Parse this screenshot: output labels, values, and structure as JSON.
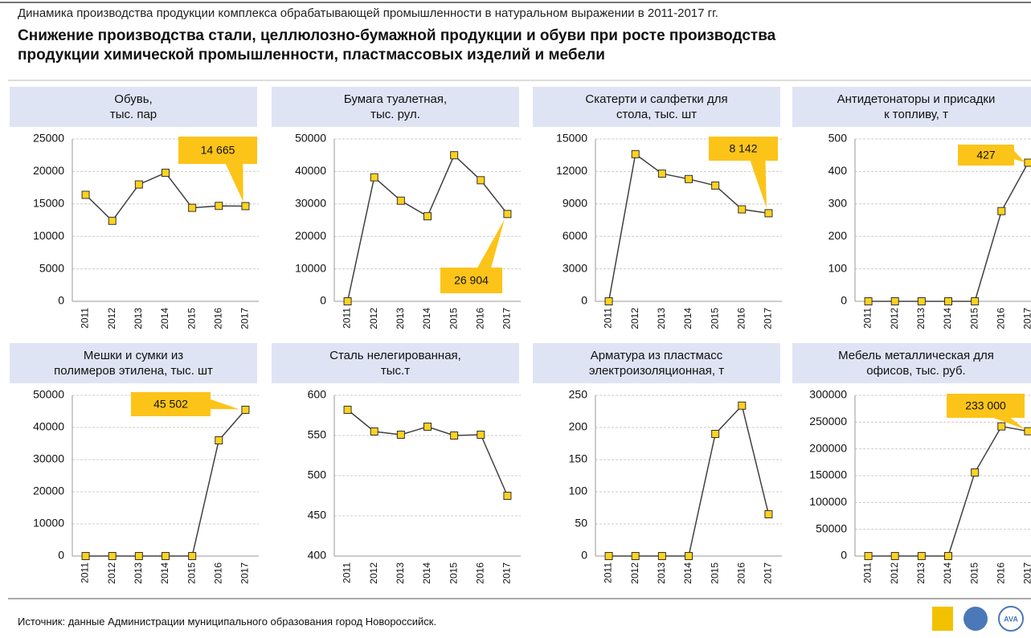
{
  "header": {
    "caption": "Динамика производства продукции комплекса обрабатывающей промышленности в натуральном выражении в 2011-2017 гг.",
    "title": "Снижение производства стали, целлюлозно-бумажной продукции и обуви при росте производства\nпродукции химической промышленности, пластмассовых изделий и мебели"
  },
  "chart_data": [
    {
      "type": "line",
      "title": "Обувь,\nтыс. пар",
      "categories": [
        "2011",
        "2012",
        "2013",
        "2014",
        "2015",
        "2016",
        "2017"
      ],
      "values": [
        16400,
        12400,
        18000,
        19800,
        14400,
        14700,
        14665
      ],
      "value_labels": [
        null,
        null,
        null,
        null,
        null,
        null,
        "14 665"
      ],
      "ylim": [
        0,
        25000
      ],
      "yticks": [
        0,
        5000,
        10000,
        15000,
        20000,
        25000
      ],
      "grid": true,
      "color": "#404040",
      "marker_color": "#ffd21f"
    },
    {
      "type": "line",
      "title": "Бумага туалетная,\nтыс. рул.",
      "categories": [
        "2011",
        "2012",
        "2013",
        "2014",
        "2015",
        "2016",
        "2017"
      ],
      "values": [
        0,
        38200,
        31000,
        26200,
        45000,
        37300,
        26904
      ],
      "value_labels": [
        null,
        null,
        null,
        null,
        null,
        null,
        "26 904"
      ],
      "ylim": [
        0,
        50000
      ],
      "yticks": [
        0,
        10000,
        20000,
        30000,
        40000,
        50000
      ],
      "grid": true,
      "color": "#404040",
      "marker_color": "#ffd21f"
    },
    {
      "type": "line",
      "title": "Скатерти и салфетки для\nстола, тыс. шт",
      "categories": [
        "2011",
        "2012",
        "2013",
        "2014",
        "2015",
        "2016",
        "2017"
      ],
      "values": [
        0,
        13600,
        11800,
        11300,
        10700,
        8500,
        8142
      ],
      "value_labels": [
        null,
        null,
        null,
        null,
        null,
        null,
        "8 142"
      ],
      "ylim": [
        0,
        15000
      ],
      "yticks": [
        0,
        3000,
        6000,
        9000,
        12000,
        15000
      ],
      "grid": true,
      "color": "#404040",
      "marker_color": "#ffd21f"
    },
    {
      "type": "line",
      "title": "Антидетонаторы и присадки\nк топливу, т",
      "categories": [
        "2011",
        "2012",
        "2013",
        "2014",
        "2015",
        "2016",
        "2017"
      ],
      "values": [
        0,
        0,
        0,
        0,
        0,
        278,
        427
      ],
      "value_labels": [
        null,
        null,
        null,
        null,
        null,
        null,
        "427"
      ],
      "ylim": [
        0,
        500
      ],
      "yticks": [
        0,
        100,
        200,
        300,
        400,
        500
      ],
      "grid": true,
      "color": "#404040",
      "marker_color": "#ffd21f"
    },
    {
      "type": "line",
      "title": "Мешки и сумки из\nполимеров этилена, тыс. шт",
      "categories": [
        "2011",
        "2012",
        "2013",
        "2014",
        "2015",
        "2016",
        "2017"
      ],
      "values": [
        0,
        0,
        0,
        0,
        0,
        36000,
        45502
      ],
      "value_labels": [
        null,
        null,
        null,
        null,
        null,
        null,
        "45 502"
      ],
      "ylim": [
        0,
        50000
      ],
      "yticks": [
        0,
        10000,
        20000,
        30000,
        40000,
        50000
      ],
      "grid": true,
      "color": "#404040",
      "marker_color": "#ffd21f"
    },
    {
      "type": "line",
      "title": "Сталь нелегированная,\nтыс.т",
      "categories": [
        "2011",
        "2012",
        "2013",
        "2014",
        "2015",
        "2016",
        "2017"
      ],
      "values": [
        582,
        555,
        551,
        561,
        550,
        551,
        475
      ],
      "ylim": [
        400,
        600
      ],
      "yticks": [
        400,
        450,
        500,
        550,
        600
      ],
      "grid": true,
      "color": "#404040",
      "marker_color": "#ffd21f"
    },
    {
      "type": "line",
      "title": "Арматура из пластмасс\nэлектроизоляционная, т",
      "categories": [
        "2011",
        "2012",
        "2013",
        "2014",
        "2015",
        "2016",
        "2017"
      ],
      "values": [
        0,
        0,
        0,
        0,
        190,
        234,
        65
      ],
      "ylim": [
        0,
        250
      ],
      "yticks": [
        0,
        50,
        100,
        150,
        200,
        250
      ],
      "grid": true,
      "color": "#404040",
      "marker_color": "#ffd21f"
    },
    {
      "type": "line",
      "title": "Мебель металлическая для\nофисов, тыс. руб.",
      "categories": [
        "2011",
        "2012",
        "2013",
        "2014",
        "2015",
        "2016",
        "2017"
      ],
      "values": [
        0,
        0,
        0,
        0,
        156000,
        242000,
        233000
      ],
      "value_labels": [
        null,
        null,
        null,
        null,
        null,
        null,
        "233 000"
      ],
      "ylim": [
        0,
        300000
      ],
      "yticks": [
        0,
        50000,
        100000,
        150000,
        200000,
        250000,
        300000
      ],
      "grid": true,
      "color": "#404040",
      "marker_color": "#ffd21f"
    }
  ],
  "footer": {
    "source": "Источник: данные Администрации муниципального образования город Новороссийск.",
    "logo_text": "AVA"
  }
}
